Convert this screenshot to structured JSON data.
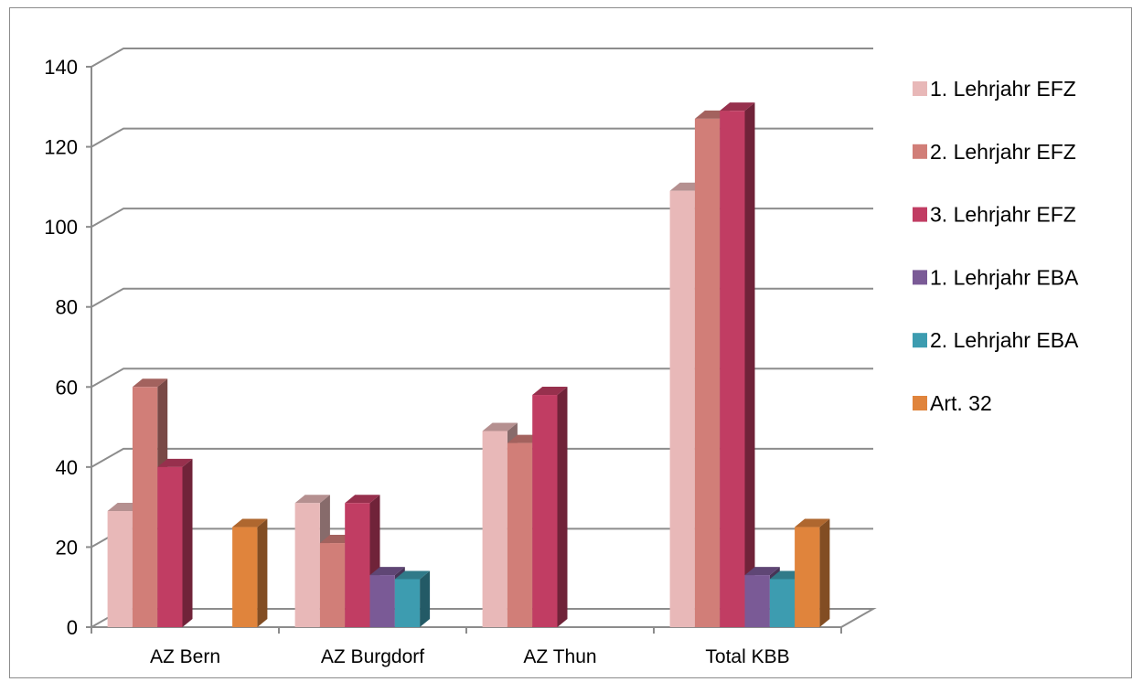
{
  "chart_data": {
    "type": "bar",
    "categories": [
      "AZ Bern",
      "AZ Burgdorf",
      "AZ Thun",
      "Total KBB"
    ],
    "series": [
      {
        "name": "1. Lehrjahr EFZ",
        "color": "#e8b8b8",
        "values": [
          29,
          31,
          49,
          109
        ]
      },
      {
        "name": "2. Lehrjahr EFZ",
        "color": "#d17e78",
        "values": [
          60,
          21,
          46,
          127
        ]
      },
      {
        "name": "3. Lehrjahr EFZ",
        "color": "#c13d63",
        "values": [
          40,
          31,
          58,
          129
        ]
      },
      {
        "name": "1. Lehrjahr EBA",
        "color": "#7a5a96",
        "values": [
          0,
          13,
          0,
          13
        ]
      },
      {
        "name": "2. Lehrjahr EBA",
        "color": "#3d9cb0",
        "values": [
          0,
          12,
          0,
          12
        ]
      },
      {
        "name": "Art. 32",
        "color": "#e0843c",
        "values": [
          25,
          0,
          0,
          25
        ]
      }
    ],
    "yticks": [
      0,
      20,
      40,
      60,
      80,
      100,
      120,
      140
    ],
    "ylim": [
      0,
      140
    ],
    "grid": true,
    "legend": "right",
    "style": "3d-clustered-column"
  }
}
